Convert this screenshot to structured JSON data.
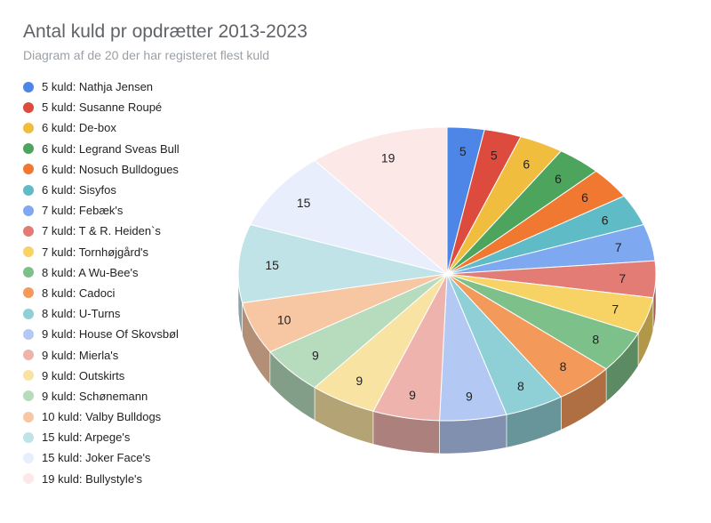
{
  "title": "Antal kuld pr opdrætter 2013-2023",
  "subtitle": "Diagram af de 20 der har registeret flest kuld",
  "chart_data": {
    "type": "pie",
    "title": "Antal kuld pr opdrætter 2013-2023",
    "subtitle": "Diagram af de 20 der har registeret flest kuld",
    "legend_position": "left",
    "style": "3d",
    "slices": [
      {
        "legend": "5 kuld: Nathja Jensen",
        "value": 5,
        "color": "#4e86e8"
      },
      {
        "legend": "5 kuld: Susanne Roupé",
        "value": 5,
        "color": "#dc4b3e"
      },
      {
        "legend": "6 kuld: De-box",
        "value": 6,
        "color": "#f1bd3f"
      },
      {
        "legend": "6 kuld: Legrand Sveas Bull",
        "value": 6,
        "color": "#4da45c"
      },
      {
        "legend": "6 kuld: Nosuch Bulldogues",
        "value": 6,
        "color": "#f07830"
      },
      {
        "legend": "6 kuld: Sisyfos",
        "value": 6,
        "color": "#5fbcc6"
      },
      {
        "legend": "7 kuld: Febæk's",
        "value": 7,
        "color": "#7ea8f0"
      },
      {
        "legend": "7 kuld: T & R. Heiden`s",
        "value": 7,
        "color": "#e27c74"
      },
      {
        "legend": "7 kuld: Tornhøjgård's",
        "value": 7,
        "color": "#f6d364"
      },
      {
        "legend": "8 kuld: A Wu-Bee's",
        "value": 8,
        "color": "#7ec08a"
      },
      {
        "legend": "8 kuld: Cadoci",
        "value": 8,
        "color": "#f39a5b"
      },
      {
        "legend": "8 kuld: U-Turns",
        "value": 8,
        "color": "#8fcfd6"
      },
      {
        "legend": "9 kuld: House Of Skovsbøl",
        "value": 9,
        "color": "#b4c8f4"
      },
      {
        "legend": "9 kuld: Mierla's",
        "value": 9,
        "color": "#efb3ad"
      },
      {
        "legend": "9 kuld: Outskirts",
        "value": 9,
        "color": "#f9e3a2"
      },
      {
        "legend": "9 kuld: Schønemann",
        "value": 9,
        "color": "#b6dbbd"
      },
      {
        "legend": "10 kuld: Valby Bulldogs",
        "value": 10,
        "color": "#f7c7a4"
      },
      {
        "legend": "15 kuld: Arpege's",
        "value": 15,
        "color": "#c0e3e7"
      },
      {
        "legend": "15 kuld: Joker Face's",
        "value": 15,
        "color": "#e8eefb"
      },
      {
        "legend": "19 kuld: Bullystyle's",
        "value": 19,
        "color": "#fbe8e7"
      }
    ]
  }
}
